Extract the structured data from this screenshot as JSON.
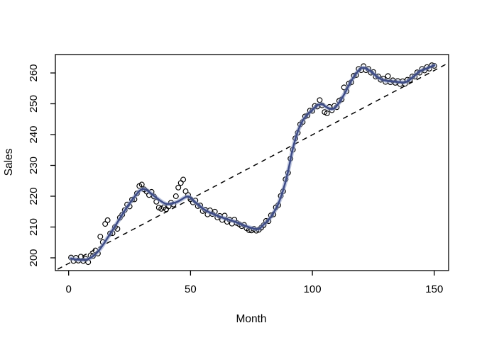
{
  "figure": {
    "background": "#ffffff",
    "title": ""
  },
  "chart_data": {
    "type": "scatter",
    "title": "",
    "xlabel": "Month",
    "ylabel": "Sales",
    "xlim": [
      0,
      150
    ],
    "ylim": [
      200,
      260
    ],
    "x_ticks": [
      0,
      50,
      100,
      150
    ],
    "y_ticks": [
      200,
      210,
      220,
      230,
      240,
      250,
      260
    ],
    "grid": false,
    "legend": "none",
    "colors": {
      "point_stroke": "#000000",
      "smooth_line": "#3E4C87",
      "smooth_halo": "#8E9CC9",
      "trend_line": "#000000",
      "axis": "#000000"
    },
    "series": [
      {
        "name": "monthly-sales-points",
        "type": "scatter",
        "marker": "open-circle",
        "points": [
          [
            1,
            200.1
          ],
          [
            2,
            199.0
          ],
          [
            3,
            200.0
          ],
          [
            4,
            199.1
          ],
          [
            5,
            200.4
          ],
          [
            6,
            199.0
          ],
          [
            7,
            199.7
          ],
          [
            8,
            198.6
          ],
          [
            9,
            200.8
          ],
          [
            10,
            200.6
          ],
          [
            11,
            202.4
          ],
          [
            12,
            201.4
          ],
          [
            13,
            206.9
          ],
          [
            14,
            205.1
          ],
          [
            15,
            211.0
          ],
          [
            16,
            212.2
          ],
          [
            17,
            207.9
          ],
          [
            18,
            208.0
          ],
          [
            19,
            210.0
          ],
          [
            20,
            209.4
          ],
          [
            21,
            213.0
          ],
          [
            22,
            214.0
          ],
          [
            23,
            215.5
          ],
          [
            24,
            217.3
          ],
          [
            25,
            216.7
          ],
          [
            26,
            218.9
          ],
          [
            27,
            219.0
          ],
          [
            28,
            220.9
          ],
          [
            29,
            223.3
          ],
          [
            30,
            223.8
          ],
          [
            31,
            222.2
          ],
          [
            32,
            221.5
          ],
          [
            33,
            220.4
          ],
          [
            34,
            221.4
          ],
          [
            35,
            219.9
          ],
          [
            36,
            218.2
          ],
          [
            37,
            216.3
          ],
          [
            38,
            215.9
          ],
          [
            39,
            216.4
          ],
          [
            40,
            215.8
          ],
          [
            41,
            216.7
          ],
          [
            42,
            217.9
          ],
          [
            43,
            217.3
          ],
          [
            44,
            220.0
          ],
          [
            45,
            222.8
          ],
          [
            46,
            224.3
          ],
          [
            47,
            225.4
          ],
          [
            48,
            221.6
          ],
          [
            49,
            220.4
          ],
          [
            50,
            219.0
          ],
          [
            51,
            218.0
          ],
          [
            52,
            218.6
          ],
          [
            53,
            216.8
          ],
          [
            54,
            217.0
          ],
          [
            55,
            215.2
          ],
          [
            56,
            215.6
          ],
          [
            57,
            214.1
          ],
          [
            58,
            215.4
          ],
          [
            59,
            214.2
          ],
          [
            60,
            215.0
          ],
          [
            61,
            213.1
          ],
          [
            62,
            213.6
          ],
          [
            63,
            212.3
          ],
          [
            64,
            213.7
          ],
          [
            65,
            211.7
          ],
          [
            66,
            212.4
          ],
          [
            67,
            211.1
          ],
          [
            68,
            212.4
          ],
          [
            69,
            211.3
          ],
          [
            70,
            210.9
          ],
          [
            71,
            210.3
          ],
          [
            72,
            210.7
          ],
          [
            73,
            209.6
          ],
          [
            74,
            209.0
          ],
          [
            75,
            208.9
          ],
          [
            76,
            209.4
          ],
          [
            77,
            208.8
          ],
          [
            78,
            209.1
          ],
          [
            79,
            209.8
          ],
          [
            80,
            210.6
          ],
          [
            81,
            212.0
          ],
          [
            82,
            211.9
          ],
          [
            83,
            213.8
          ],
          [
            84,
            214.1
          ],
          [
            85,
            216.4
          ],
          [
            86,
            217.1
          ],
          [
            87,
            220.1
          ],
          [
            88,
            221.6
          ],
          [
            89,
            225.5
          ],
          [
            90,
            227.6
          ],
          [
            91,
            232.2
          ],
          [
            92,
            235.1
          ],
          [
            93,
            238.8
          ],
          [
            94,
            240.6
          ],
          [
            95,
            243.3
          ],
          [
            96,
            244.1
          ],
          [
            97,
            245.9
          ],
          [
            98,
            246.2
          ],
          [
            99,
            247.8
          ],
          [
            100,
            247.7
          ],
          [
            101,
            249.3
          ],
          [
            102,
            249.1
          ],
          [
            103,
            251.2
          ],
          [
            104,
            249.5
          ],
          [
            105,
            247.3
          ],
          [
            106,
            246.9
          ],
          [
            107,
            249.0
          ],
          [
            108,
            247.9
          ],
          [
            109,
            249.3
          ],
          [
            110,
            248.9
          ],
          [
            111,
            251.0
          ],
          [
            112,
            251.4
          ],
          [
            113,
            255.3
          ],
          [
            114,
            254.1
          ],
          [
            115,
            256.6
          ],
          [
            116,
            257.0
          ],
          [
            117,
            259.1
          ],
          [
            118,
            259.3
          ],
          [
            119,
            261.3
          ],
          [
            120,
            260.9
          ],
          [
            121,
            262.2
          ],
          [
            122,
            260.9
          ],
          [
            123,
            261.3
          ],
          [
            124,
            260.1
          ],
          [
            125,
            260.3
          ],
          [
            126,
            258.8
          ],
          [
            127,
            258.9
          ],
          [
            128,
            257.8
          ],
          [
            129,
            258.2
          ],
          [
            130,
            257.1
          ],
          [
            131,
            259.0
          ],
          [
            132,
            257.0
          ],
          [
            133,
            257.6
          ],
          [
            134,
            256.8
          ],
          [
            135,
            257.4
          ],
          [
            136,
            256.4
          ],
          [
            137,
            257.3
          ],
          [
            138,
            256.5
          ],
          [
            139,
            257.8
          ],
          [
            140,
            257.7
          ],
          [
            141,
            258.9
          ],
          [
            142,
            258.8
          ],
          [
            143,
            260.2
          ],
          [
            144,
            260.1
          ],
          [
            145,
            261.3
          ],
          [
            146,
            260.8
          ],
          [
            147,
            261.9
          ],
          [
            148,
            261.4
          ],
          [
            149,
            262.5
          ],
          [
            150,
            262.3
          ]
        ]
      },
      {
        "name": "lowess-smooth",
        "type": "line",
        "points": [
          [
            1,
            199.8
          ],
          [
            4,
            199.4
          ],
          [
            8,
            199.6
          ],
          [
            12,
            202.0
          ],
          [
            16,
            206.5
          ],
          [
            20,
            211.5
          ],
          [
            24,
            216.5
          ],
          [
            28,
            220.8
          ],
          [
            30,
            222.2
          ],
          [
            32,
            222.0
          ],
          [
            36,
            219.5
          ],
          [
            40,
            217.5
          ],
          [
            44,
            218.0
          ],
          [
            46,
            218.8
          ],
          [
            49,
            219.9
          ],
          [
            52,
            218.0
          ],
          [
            56,
            215.5
          ],
          [
            60,
            214.0
          ],
          [
            64,
            212.8
          ],
          [
            68,
            211.8
          ],
          [
            72,
            210.5
          ],
          [
            76,
            209.5
          ],
          [
            78,
            209.4
          ],
          [
            80,
            210.8
          ],
          [
            82,
            212.3
          ],
          [
            84,
            214.5
          ],
          [
            86,
            217.5
          ],
          [
            88,
            222.0
          ],
          [
            90,
            228.0
          ],
          [
            92,
            235.5
          ],
          [
            94,
            241.0
          ],
          [
            96,
            244.5
          ],
          [
            98,
            246.5
          ],
          [
            100,
            248.0
          ],
          [
            102,
            249.5
          ],
          [
            104,
            249.8
          ],
          [
            106,
            248.8
          ],
          [
            108,
            248.3
          ],
          [
            110,
            249.3
          ],
          [
            113,
            253.0
          ],
          [
            116,
            257.5
          ],
          [
            119,
            260.8
          ],
          [
            121,
            261.7
          ],
          [
            124,
            260.5
          ],
          [
            127,
            258.5
          ],
          [
            130,
            257.5
          ],
          [
            134,
            257.2
          ],
          [
            138,
            257.0
          ],
          [
            141,
            258.5
          ],
          [
            144,
            260.5
          ],
          [
            147,
            261.5
          ],
          [
            150,
            262.5
          ]
        ]
      },
      {
        "name": "linear-trend",
        "type": "dashed-line",
        "points": [
          [
            -4.5,
            196.3
          ],
          [
            155,
            262.9
          ]
        ]
      }
    ]
  }
}
